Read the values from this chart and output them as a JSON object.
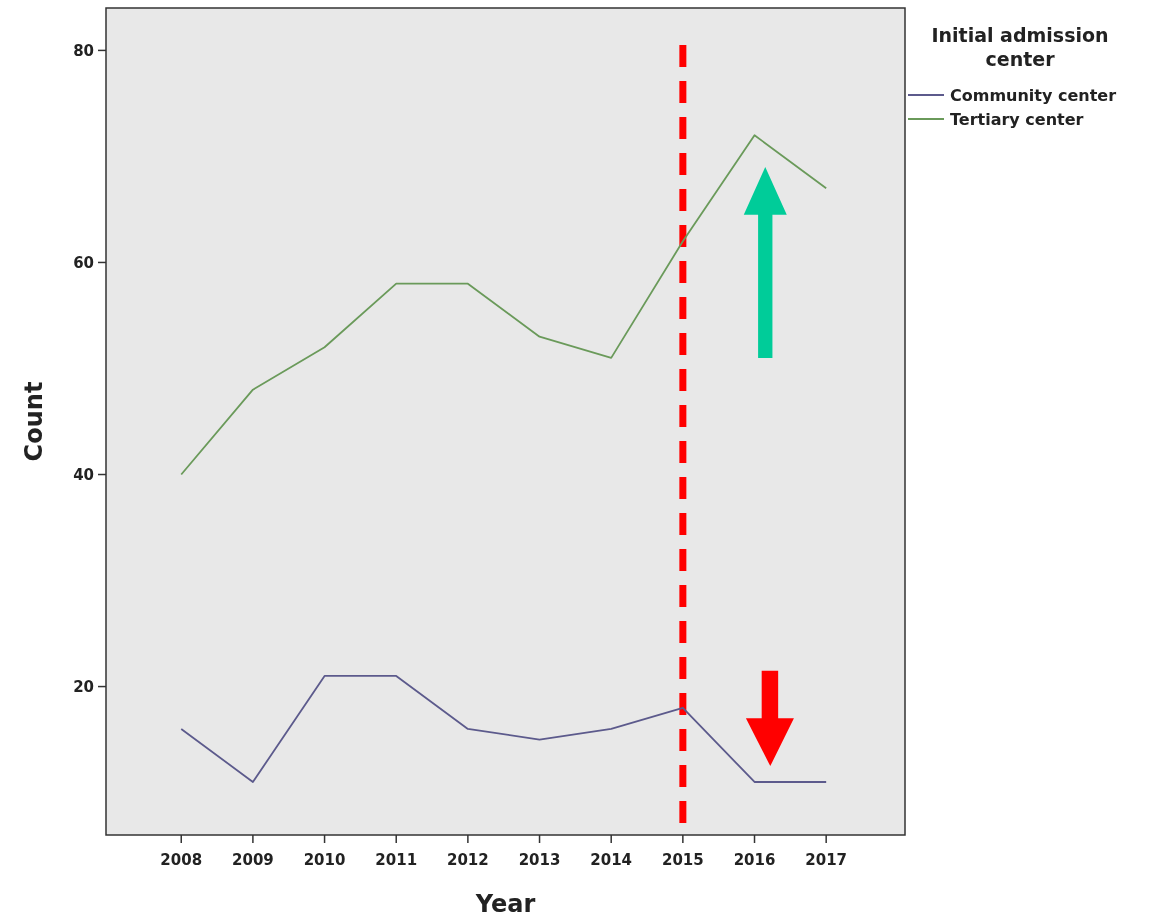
{
  "chart_data": {
    "type": "line",
    "xlabel": "Year",
    "ylabel": "Count",
    "legend_title": "Initial admission center",
    "legend": "top right",
    "grid": false,
    "x": [
      2008,
      2009,
      2010,
      2011,
      2012,
      2013,
      2014,
      2015,
      2016,
      2017
    ],
    "xlim": [
      2006.95,
      2018.1
    ],
    "xticks": [
      2008,
      2009,
      2010,
      2011,
      2012,
      2013,
      2014,
      2015,
      2016,
      2017
    ],
    "ylim": [
      6,
      84
    ],
    "yticks": [
      20,
      40,
      60,
      80
    ],
    "series": [
      {
        "name": "Community center",
        "color": "#5c5a8c",
        "values": [
          16,
          11,
          21,
          21,
          16,
          15,
          16,
          18,
          11,
          11
        ]
      },
      {
        "name": "Tertiary center",
        "color": "#6a9a5a",
        "values": [
          40,
          48,
          52,
          58,
          58,
          53,
          51,
          62,
          72,
          67
        ]
      }
    ],
    "ref_lines": [
      {
        "axis": "x",
        "value": 2015,
        "color": "#ff0000",
        "line_style": "dashed"
      }
    ]
  }
}
